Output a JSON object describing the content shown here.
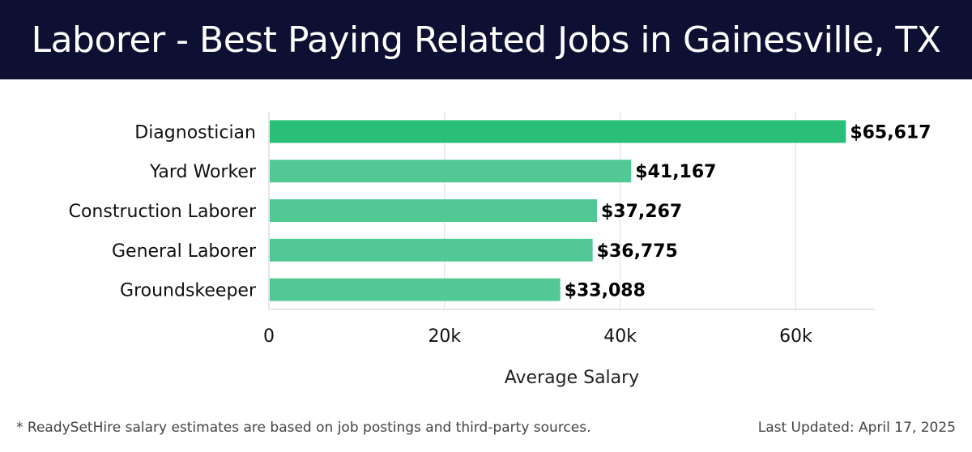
{
  "header": {
    "title": "Laborer - Best Paying Related Jobs in Gainesville, TX"
  },
  "chart_data": {
    "type": "bar",
    "orientation": "horizontal",
    "title": "Laborer - Best Paying Related Jobs in Gainesville, TX",
    "xlabel": "Average Salary",
    "ylabel": "",
    "categories": [
      "Diagnostician",
      "Yard Worker",
      "Construction Laborer",
      "General Laborer",
      "Groundskeeper"
    ],
    "values": [
      65617,
      41167,
      37267,
      36775,
      33088
    ],
    "value_labels": [
      "$65,617",
      "$41,167",
      "$37,267",
      "$36,775",
      "$33,088"
    ],
    "xlim": [
      0,
      69000
    ],
    "x_ticks": [
      0,
      20000,
      40000,
      60000
    ],
    "x_tick_labels": [
      "0",
      "20k",
      "40k",
      "60k"
    ],
    "grid": "vertical",
    "legend": "none",
    "colors": {
      "highlight_bar": "#29bf78",
      "bar": "#52c994",
      "grid": "#dddddd",
      "axis": "#cccccc"
    }
  },
  "footer": {
    "note": "* ReadySetHire salary estimates are based on job postings and third-party sources.",
    "last_updated": "Last Updated: April 17, 2025"
  }
}
